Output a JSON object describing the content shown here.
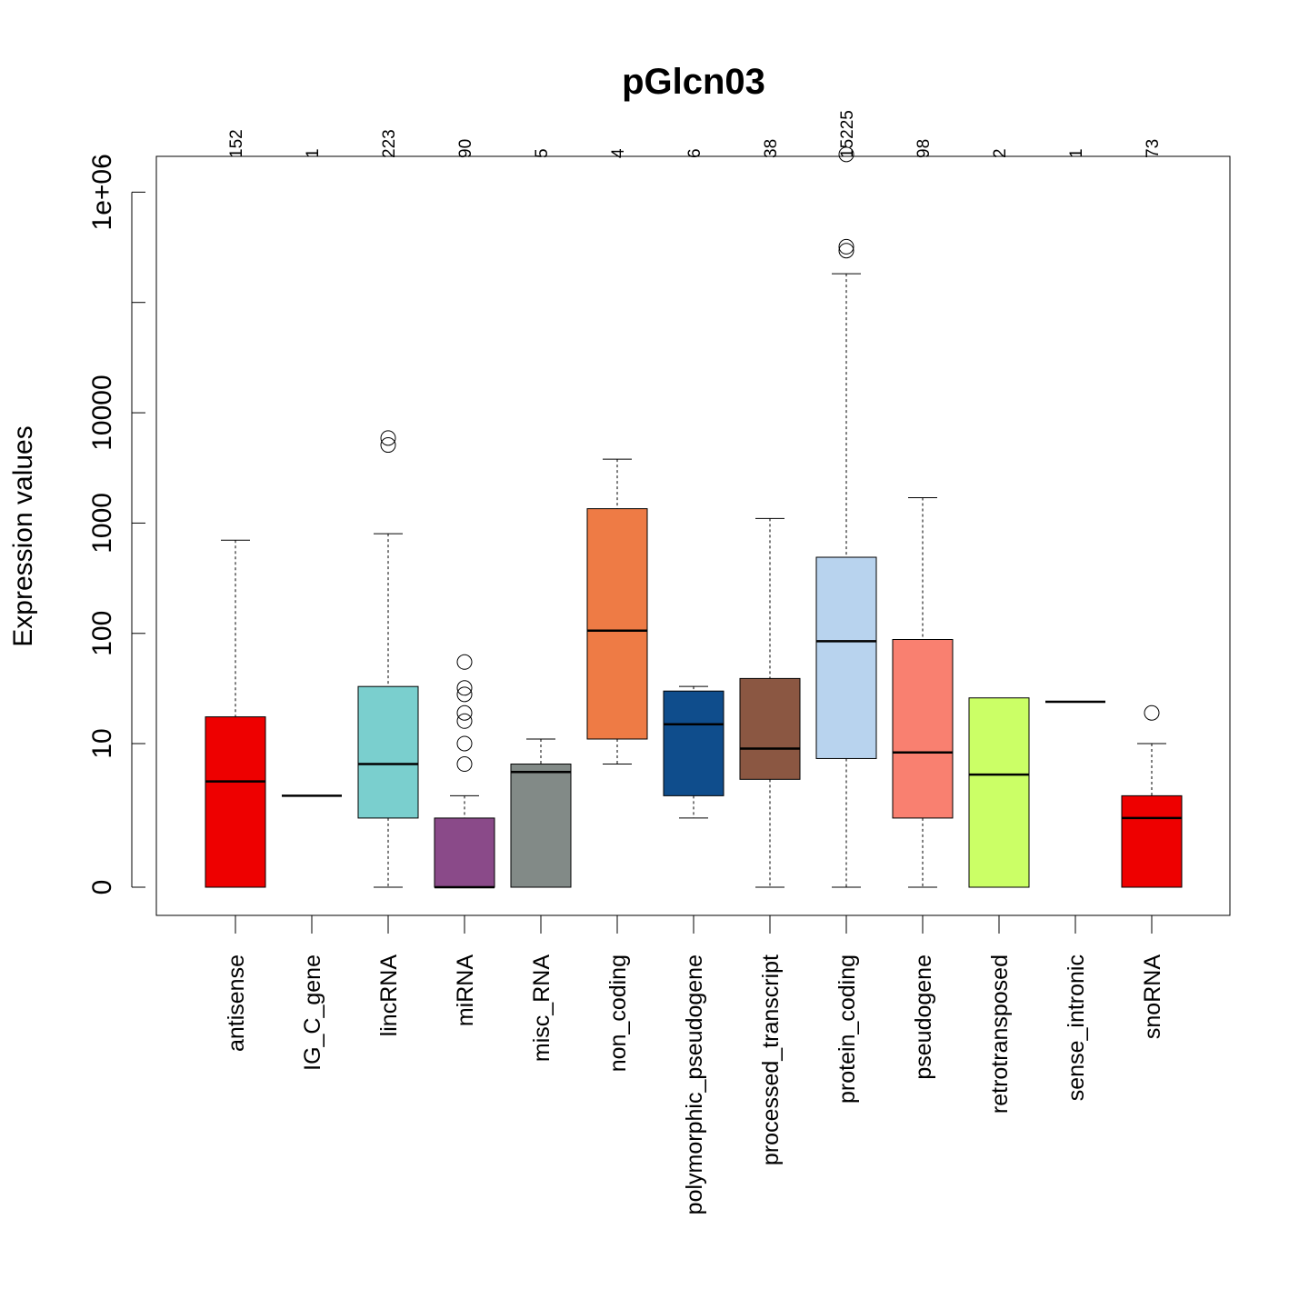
{
  "chart_data": {
    "type": "box",
    "title": "pGlcn03",
    "xlabel": "",
    "ylabel": "Expression values",
    "y_scale": "asinh-like (log for large values)",
    "y_ticks": [
      {
        "value": 0,
        "label": "0"
      },
      {
        "value": 10,
        "label": "10"
      },
      {
        "value": 100,
        "label": "100"
      },
      {
        "value": 1000,
        "label": "1000"
      },
      {
        "value": 10000,
        "label": "10000"
      },
      {
        "value": 100000,
        "label": ""
      },
      {
        "value": 1000000,
        "label": "1e+06"
      }
    ],
    "grid": false,
    "legend": "none",
    "categories": [
      {
        "name": "antisense",
        "count": "152",
        "color": "#EE0000",
        "min": 0,
        "q1": 0,
        "median": 4.5,
        "q3": 17.5,
        "max": 700,
        "outliers": []
      },
      {
        "name": "IG_C_gene",
        "count": "1",
        "color": "#FFFFFF",
        "min": 3.3,
        "q1": 3.3,
        "median": 3.3,
        "q3": 3.3,
        "max": 3.3,
        "outliers": []
      },
      {
        "name": "lincRNA",
        "count": "223",
        "color": "#7ACFCE",
        "min": 0,
        "q1": 2.0,
        "median": 6.5,
        "q3": 33,
        "max": 800,
        "outliers": [
          5100,
          5900
        ]
      },
      {
        "name": "miRNA",
        "count": "90",
        "color": "#8A4A89",
        "min": 0,
        "q1": 0,
        "median": 0,
        "q3": 2.0,
        "max": 3.3,
        "outliers": [
          6.5,
          10,
          16,
          19,
          28,
          32,
          55
        ]
      },
      {
        "name": "misc_RNA",
        "count": "5",
        "color": "#828A87",
        "min": 0,
        "q1": 0,
        "median": 5.5,
        "q3": 6.5,
        "max": 11,
        "outliers": []
      },
      {
        "name": "non_coding",
        "count": "4",
        "color": "#EE7B45",
        "min": 6.5,
        "q1": 11,
        "median": 106,
        "q3": 1350,
        "max": 3800,
        "outliers": []
      },
      {
        "name": "polymorphic_pseudogene",
        "count": "6",
        "color": "#0F4D8C",
        "min": 2.0,
        "q1": 3.3,
        "median": 15,
        "q3": 30,
        "max": 33,
        "outliers": []
      },
      {
        "name": "processed_transcript",
        "count": "38",
        "color": "#8B5742",
        "min": 0,
        "q1": 4.7,
        "median": 9,
        "q3": 39,
        "max": 1100,
        "outliers": []
      },
      {
        "name": "protein_coding",
        "count": "15225",
        "color": "#B8D3EE",
        "min": 0,
        "q1": 7.3,
        "median": 85,
        "q3": 490,
        "max": 182000,
        "outliers": [
          295000,
          320000,
          2200000
        ]
      },
      {
        "name": "pseudogene",
        "count": "98",
        "color": "#F98070",
        "min": 0,
        "q1": 2.0,
        "median": 8.3,
        "q3": 88,
        "max": 1700,
        "outliers": []
      },
      {
        "name": "retrotransposed",
        "count": "2",
        "color": "#CBFF66",
        "min": 0,
        "q1": 0,
        "median": 5.2,
        "q3": 26,
        "max": 26,
        "outliers": []
      },
      {
        "name": "sense_intronic",
        "count": "1",
        "color": "#FFFFFF",
        "min": 24,
        "q1": 24,
        "median": 24,
        "q3": 24,
        "max": 24,
        "outliers": []
      },
      {
        "name": "snoRNA",
        "count": "73",
        "color": "#EE0000",
        "min": 0,
        "q1": 0,
        "median": 2.0,
        "q3": 3.3,
        "max": 10,
        "outliers": [
          19
        ]
      }
    ]
  }
}
